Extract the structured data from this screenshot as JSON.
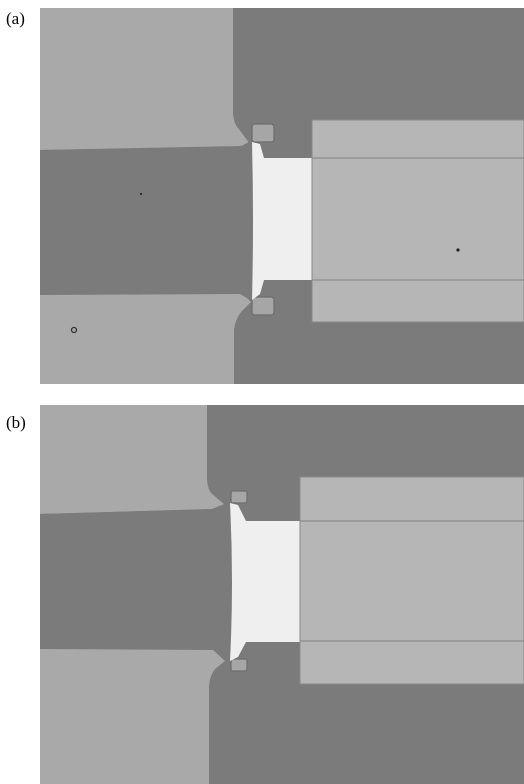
{
  "panels": [
    {
      "label": "(a)"
    },
    {
      "label": "(b)"
    }
  ],
  "colors": {
    "dark_gray": "#7a7a7a",
    "light_gray": "#a9a9a9",
    "metal_gray": "#b4b4b4",
    "bright_junction": "#efefef",
    "background": "#ffffff"
  }
}
